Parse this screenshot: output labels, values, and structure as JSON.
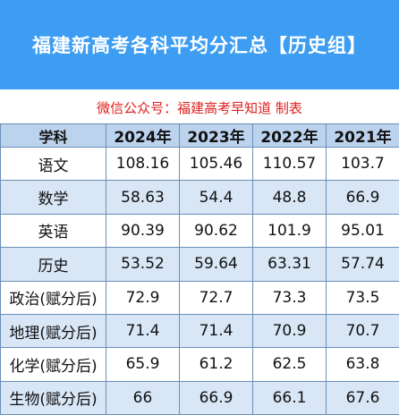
{
  "banner": {
    "title": "福建新高考各科平均分汇总【历史组】"
  },
  "subtitle": "微信公众号：福建高考早知道 制表",
  "table": {
    "headers": [
      "学科",
      "2024年",
      "2023年",
      "2022年",
      "2021年"
    ],
    "rows": [
      {
        "subject": "语文",
        "values": [
          "108.16",
          "105.46",
          "110.57",
          "103.7"
        ]
      },
      {
        "subject": "数学",
        "values": [
          "58.63",
          "54.4",
          "48.8",
          "66.9"
        ]
      },
      {
        "subject": "英语",
        "values": [
          "90.39",
          "90.62",
          "101.9",
          "95.01"
        ]
      },
      {
        "subject": "历史",
        "values": [
          "53.52",
          "59.64",
          "63.31",
          "57.74"
        ]
      },
      {
        "subject": "政治(赋分后)",
        "values": [
          "72.9",
          "72.7",
          "73.3",
          "73.5"
        ]
      },
      {
        "subject": "地理(赋分后)",
        "values": [
          "71.4",
          "71.4",
          "70.9",
          "70.7"
        ]
      },
      {
        "subject": "化学(赋分后)",
        "values": [
          "65.9",
          "61.2",
          "62.5",
          "63.8"
        ]
      },
      {
        "subject": "生物(赋分后)",
        "values": [
          "66",
          "66.9",
          "66.1",
          "67.6"
        ]
      }
    ]
  },
  "colors": {
    "banner": "#3c9df2",
    "subtitle": "#e0201f",
    "header_row": "#bcd3ee",
    "alt_row": "#d8e6f6",
    "grid_line": "#6a8fb8"
  }
}
